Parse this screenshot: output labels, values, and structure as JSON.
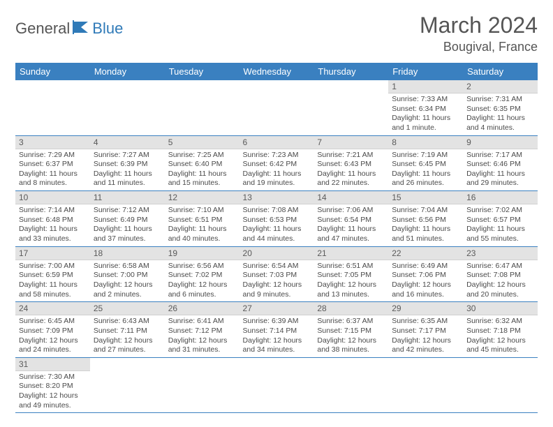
{
  "brand": {
    "part1": "General",
    "part2": "Blue"
  },
  "title": "March 2024",
  "location": "Bougival, France",
  "theme": {
    "header_bg": "#3a80c0",
    "header_fg": "#ffffff",
    "daynum_bg": "#e3e3e3",
    "rule": "#3a80c0",
    "text": "#4a4a4a"
  },
  "weekdays": [
    "Sunday",
    "Monday",
    "Tuesday",
    "Wednesday",
    "Thursday",
    "Friday",
    "Saturday"
  ],
  "weeks": [
    [
      null,
      null,
      null,
      null,
      null,
      {
        "d": "1",
        "sr": "7:33 AM",
        "ss": "6:34 PM",
        "dl": "11 hours and 1 minute."
      },
      {
        "d": "2",
        "sr": "7:31 AM",
        "ss": "6:35 PM",
        "dl": "11 hours and 4 minutes."
      }
    ],
    [
      {
        "d": "3",
        "sr": "7:29 AM",
        "ss": "6:37 PM",
        "dl": "11 hours and 8 minutes."
      },
      {
        "d": "4",
        "sr": "7:27 AM",
        "ss": "6:39 PM",
        "dl": "11 hours and 11 minutes."
      },
      {
        "d": "5",
        "sr": "7:25 AM",
        "ss": "6:40 PM",
        "dl": "11 hours and 15 minutes."
      },
      {
        "d": "6",
        "sr": "7:23 AM",
        "ss": "6:42 PM",
        "dl": "11 hours and 19 minutes."
      },
      {
        "d": "7",
        "sr": "7:21 AM",
        "ss": "6:43 PM",
        "dl": "11 hours and 22 minutes."
      },
      {
        "d": "8",
        "sr": "7:19 AM",
        "ss": "6:45 PM",
        "dl": "11 hours and 26 minutes."
      },
      {
        "d": "9",
        "sr": "7:17 AM",
        "ss": "6:46 PM",
        "dl": "11 hours and 29 minutes."
      }
    ],
    [
      {
        "d": "10",
        "sr": "7:14 AM",
        "ss": "6:48 PM",
        "dl": "11 hours and 33 minutes."
      },
      {
        "d": "11",
        "sr": "7:12 AM",
        "ss": "6:49 PM",
        "dl": "11 hours and 37 minutes."
      },
      {
        "d": "12",
        "sr": "7:10 AM",
        "ss": "6:51 PM",
        "dl": "11 hours and 40 minutes."
      },
      {
        "d": "13",
        "sr": "7:08 AM",
        "ss": "6:53 PM",
        "dl": "11 hours and 44 minutes."
      },
      {
        "d": "14",
        "sr": "7:06 AM",
        "ss": "6:54 PM",
        "dl": "11 hours and 47 minutes."
      },
      {
        "d": "15",
        "sr": "7:04 AM",
        "ss": "6:56 PM",
        "dl": "11 hours and 51 minutes."
      },
      {
        "d": "16",
        "sr": "7:02 AM",
        "ss": "6:57 PM",
        "dl": "11 hours and 55 minutes."
      }
    ],
    [
      {
        "d": "17",
        "sr": "7:00 AM",
        "ss": "6:59 PM",
        "dl": "11 hours and 58 minutes."
      },
      {
        "d": "18",
        "sr": "6:58 AM",
        "ss": "7:00 PM",
        "dl": "12 hours and 2 minutes."
      },
      {
        "d": "19",
        "sr": "6:56 AM",
        "ss": "7:02 PM",
        "dl": "12 hours and 6 minutes."
      },
      {
        "d": "20",
        "sr": "6:54 AM",
        "ss": "7:03 PM",
        "dl": "12 hours and 9 minutes."
      },
      {
        "d": "21",
        "sr": "6:51 AM",
        "ss": "7:05 PM",
        "dl": "12 hours and 13 minutes."
      },
      {
        "d": "22",
        "sr": "6:49 AM",
        "ss": "7:06 PM",
        "dl": "12 hours and 16 minutes."
      },
      {
        "d": "23",
        "sr": "6:47 AM",
        "ss": "7:08 PM",
        "dl": "12 hours and 20 minutes."
      }
    ],
    [
      {
        "d": "24",
        "sr": "6:45 AM",
        "ss": "7:09 PM",
        "dl": "12 hours and 24 minutes."
      },
      {
        "d": "25",
        "sr": "6:43 AM",
        "ss": "7:11 PM",
        "dl": "12 hours and 27 minutes."
      },
      {
        "d": "26",
        "sr": "6:41 AM",
        "ss": "7:12 PM",
        "dl": "12 hours and 31 minutes."
      },
      {
        "d": "27",
        "sr": "6:39 AM",
        "ss": "7:14 PM",
        "dl": "12 hours and 34 minutes."
      },
      {
        "d": "28",
        "sr": "6:37 AM",
        "ss": "7:15 PM",
        "dl": "12 hours and 38 minutes."
      },
      {
        "d": "29",
        "sr": "6:35 AM",
        "ss": "7:17 PM",
        "dl": "12 hours and 42 minutes."
      },
      {
        "d": "30",
        "sr": "6:32 AM",
        "ss": "7:18 PM",
        "dl": "12 hours and 45 minutes."
      }
    ],
    [
      {
        "d": "31",
        "sr": "7:30 AM",
        "ss": "8:20 PM",
        "dl": "12 hours and 49 minutes."
      },
      null,
      null,
      null,
      null,
      null,
      null
    ]
  ],
  "labels": {
    "sunrise": "Sunrise:",
    "sunset": "Sunset:",
    "daylight": "Daylight:"
  }
}
